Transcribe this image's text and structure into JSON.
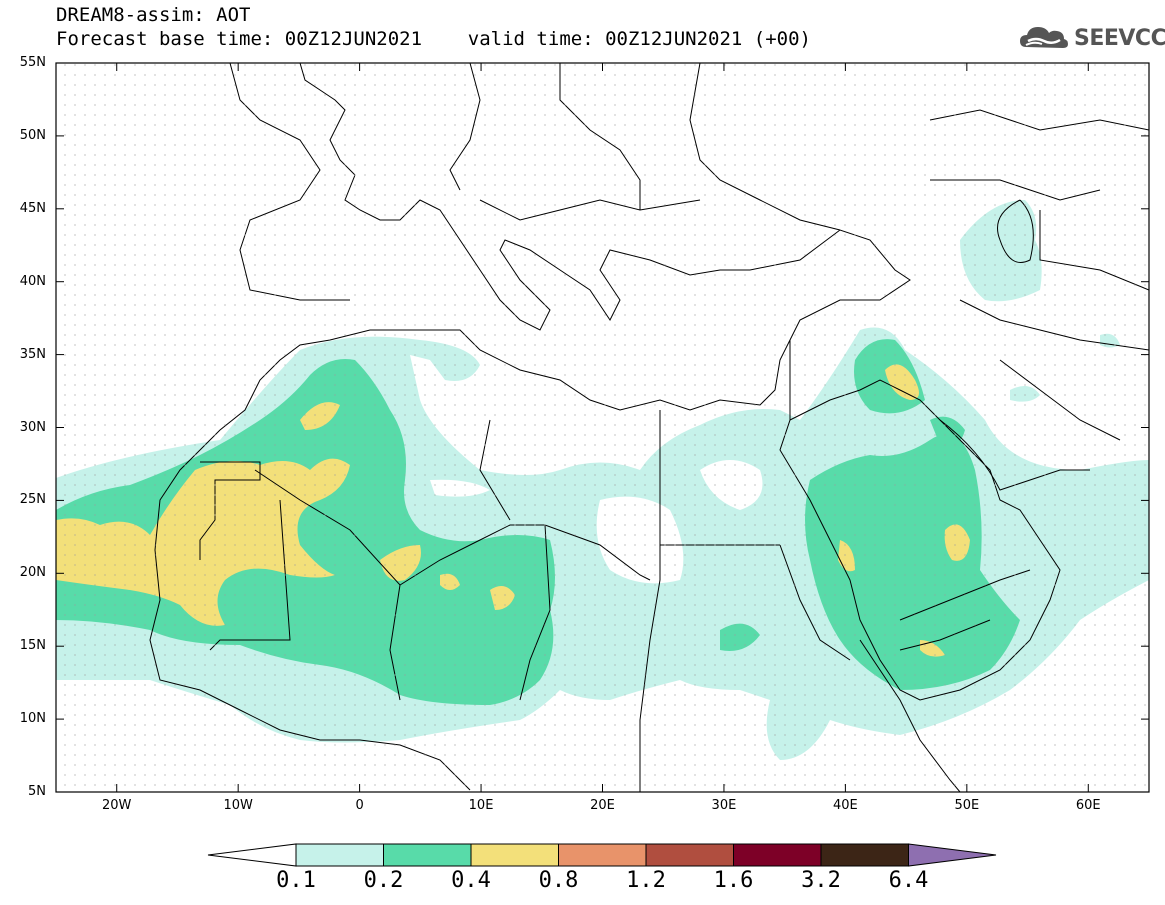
{
  "title": {
    "line1": "DREAM8-assim: AOT",
    "line2": "Forecast base time: 00Z12JUN2021    valid time: 00Z12JUN2021 (+00)"
  },
  "logo": {
    "text": "SEEVCCC",
    "icon": "cloud-icon"
  },
  "map": {
    "lon_range": [
      -25,
      65
    ],
    "lat_range": [
      5,
      55
    ],
    "lat_ticks": [
      "55N",
      "50N",
      "45N",
      "40N",
      "35N",
      "30N",
      "25N",
      "20N",
      "15N",
      "10N",
      "5N"
    ],
    "lon_ticks": [
      "20W",
      "10W",
      "0",
      "10E",
      "20E",
      "30E",
      "40E",
      "50E",
      "60E"
    ]
  },
  "colorbar": {
    "levels": [
      "0.1",
      "0.2",
      "0.4",
      "0.8",
      "1.2",
      "1.6",
      "3.2",
      "6.4"
    ],
    "colors": [
      "#ffffff",
      "#c6f2ea",
      "#58dba9",
      "#f3e07a",
      "#e8936a",
      "#b04e3f",
      "#7d0027",
      "#3c2516",
      "#8e6fb0"
    ]
  }
}
